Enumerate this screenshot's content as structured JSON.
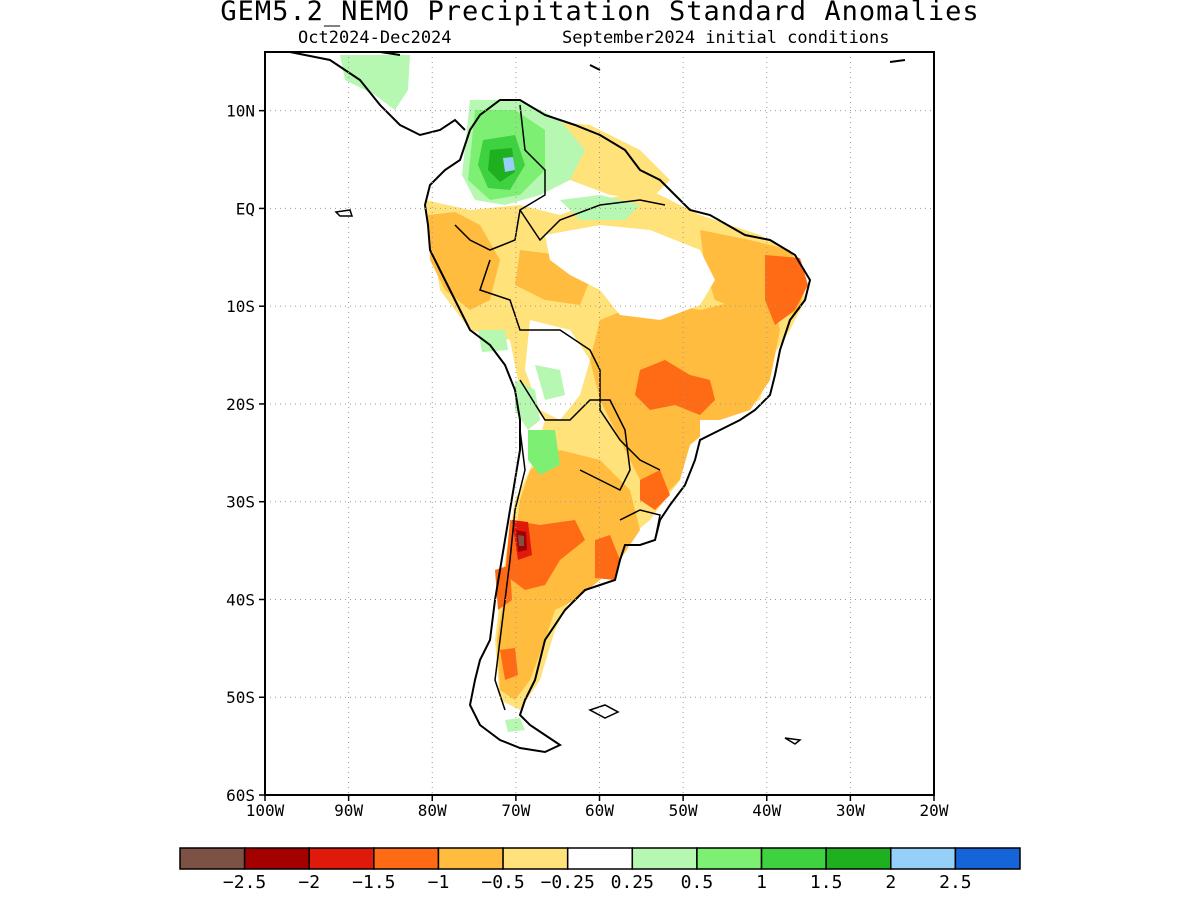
{
  "title": "GEM5.2_NEMO Precipitation Standard Anomalies",
  "period": "Oct2024-Dec2024",
  "init": "September2024 initial conditions",
  "map": {
    "lon_range": [
      -100,
      -20
    ],
    "lat_range": [
      -60,
      16
    ],
    "lon_ticks": [
      {
        "v": -100,
        "label": "100W"
      },
      {
        "v": -90,
        "label": "90W"
      },
      {
        "v": -80,
        "label": "80W"
      },
      {
        "v": -70,
        "label": "70W"
      },
      {
        "v": -60,
        "label": "60W"
      },
      {
        "v": -50,
        "label": "50W"
      },
      {
        "v": -40,
        "label": "40W"
      },
      {
        "v": -30,
        "label": "30W"
      },
      {
        "v": -20,
        "label": "20W"
      }
    ],
    "lat_ticks": [
      {
        "v": 10,
        "label": "10N"
      },
      {
        "v": 0,
        "label": "EQ"
      },
      {
        "v": -10,
        "label": "10S"
      },
      {
        "v": -20,
        "label": "20S"
      },
      {
        "v": -30,
        "label": "30S"
      },
      {
        "v": -40,
        "label": "40S"
      },
      {
        "v": -50,
        "label": "50S"
      },
      {
        "v": -60,
        "label": "60S"
      }
    ],
    "grid": true,
    "region": "South America"
  },
  "colorbar": {
    "colors": [
      "#7c5245",
      "#a50000",
      "#e01a0a",
      "#ff6a14",
      "#ffbc3f",
      "#ffe27a",
      "#ffffff",
      "#b6f7b1",
      "#7df074",
      "#3ed240",
      "#1eb01e",
      "#94d0f8",
      "#1565d8"
    ],
    "labels": [
      "-2.5",
      "-2",
      "-1.5",
      "-1",
      "-0.5",
      "-0.25",
      "0.25",
      "0.5",
      "1",
      "1.5",
      "2",
      "2.5"
    ]
  }
}
